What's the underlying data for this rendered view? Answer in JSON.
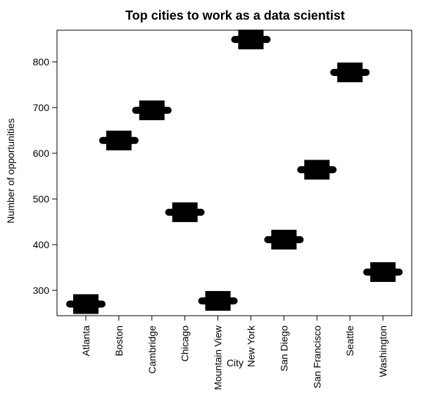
{
  "chart_data": {
    "type": "scatter",
    "title": "Top cities to work as a data scientist",
    "xlabel": "City",
    "ylabel": "Number of opportunities",
    "categories": [
      "Atlanta",
      "Boston",
      "Cambridge",
      "Chicago",
      "Mountain View",
      "New York",
      "San Diego",
      "San Francisco",
      "Seattle",
      "Washington"
    ],
    "values": [
      270,
      628,
      694,
      471,
      277,
      849,
      411,
      564,
      777,
      340
    ],
    "yticks": [
      300,
      400,
      500,
      600,
      700,
      800
    ],
    "ylim": [
      248,
      870
    ],
    "grid": false,
    "legend": "none",
    "marker_color": "#000000"
  }
}
